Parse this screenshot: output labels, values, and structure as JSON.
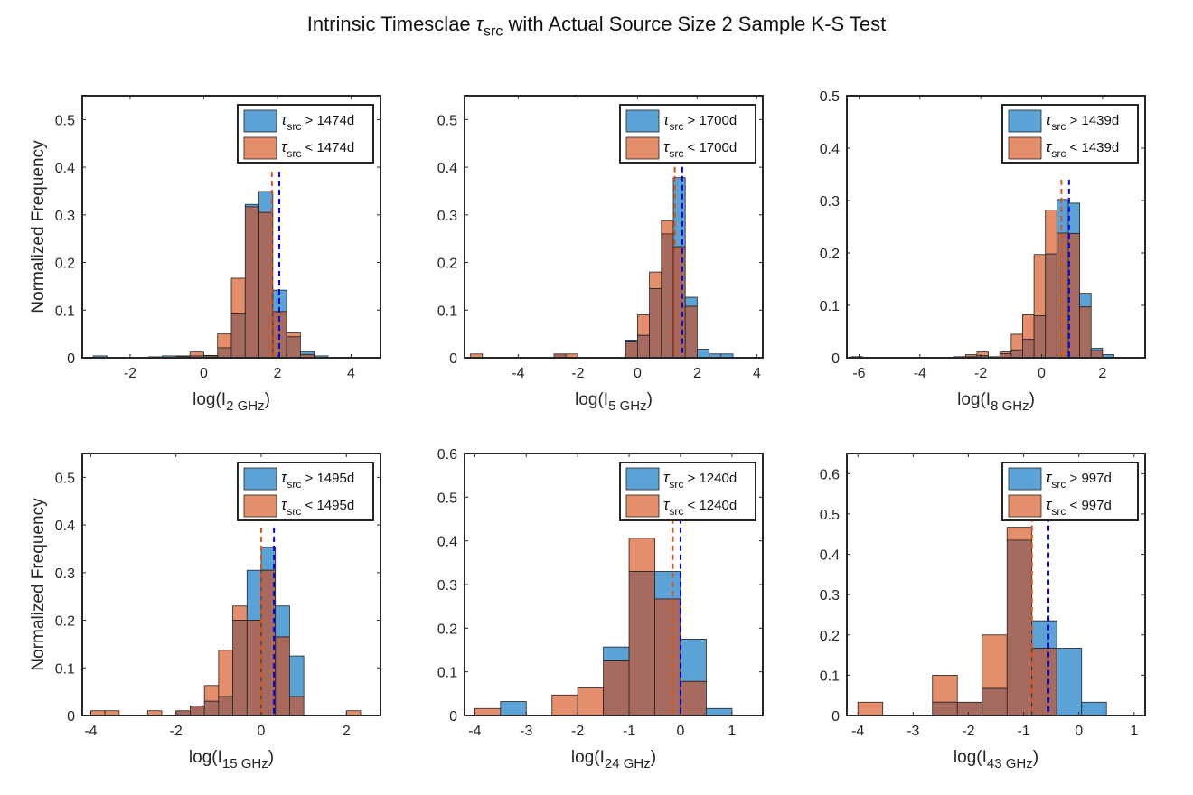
{
  "title": {
    "prefix": "Intrinsic Timesclae ",
    "symbol": "τ",
    "sub": "src",
    "suffix": " with Actual Source Size 2 Sample K-S Test"
  },
  "colors": {
    "above": "#5ba3d6",
    "below": "#e58e6b",
    "overlap": "#a66a5e",
    "median_above": "#0000dd",
    "median_below": "#d95319"
  },
  "ylabel": "Normalized Frequency",
  "chart_data": [
    {
      "type": "bar",
      "name": "2 GHz",
      "xlabel_main": "log(I",
      "xlabel_sub": "2 GHz",
      "xlim": [
        -3.3,
        4.8
      ],
      "ylim": [
        0,
        0.55
      ],
      "xticks": [
        -2,
        0,
        2,
        4
      ],
      "xtick_labels": [
        "-2",
        "0",
        "2",
        "4"
      ],
      "yticks": [
        0,
        0.1,
        0.2,
        0.3,
        0.4,
        0.5
      ],
      "ytick_labels": [
        "0",
        "0.1",
        "0.2",
        "0.3",
        "0.4",
        "0.5"
      ],
      "bin_edges": [
        -3.0,
        -2.625,
        -2.25,
        -1.875,
        -1.5,
        -1.125,
        -0.75,
        -0.375,
        0.0,
        0.375,
        0.75,
        1.125,
        1.5,
        1.875,
        2.25,
        2.625,
        3.0,
        3.375,
        3.75,
        4.125,
        4.5
      ],
      "series": [
        {
          "name": "τsrc > 1474d",
          "legend_prefix": "τ",
          "legend_sub": "src",
          "legend_suffix": " > 1474d",
          "values": [
            0.004,
            0.0,
            0.0,
            0.0,
            0.002,
            0.004,
            0.004,
            0.004,
            0.004,
            0.021,
            0.092,
            0.322,
            0.349,
            0.142,
            0.044,
            0.013,
            0.004,
            0.0,
            0.0,
            0.0
          ]
        },
        {
          "name": "τsrc < 1474d",
          "legend_prefix": "τ",
          "legend_sub": "src",
          "legend_suffix": " < 1474d",
          "values": [
            0.0,
            0.0,
            0.0,
            0.0,
            0.0,
            0.0,
            0.003,
            0.012,
            0.005,
            0.05,
            0.167,
            0.317,
            0.305,
            0.097,
            0.052,
            0.007,
            0.0,
            0.0,
            0.0,
            0.0
          ]
        }
      ],
      "medians": [
        2.05,
        1.85
      ]
    },
    {
      "type": "bar",
      "name": "5 GHz",
      "xlabel_main": "log(I",
      "xlabel_sub": "5 GHz",
      "xlim": [
        -5.8,
        4.2
      ],
      "ylim": [
        0,
        0.55
      ],
      "xticks": [
        -4,
        -2,
        0,
        2,
        4
      ],
      "xtick_labels": [
        "-4",
        "-2",
        "0",
        "2",
        "4"
      ],
      "yticks": [
        0,
        0.1,
        0.2,
        0.3,
        0.4,
        0.5
      ],
      "ytick_labels": [
        "0",
        "0.1",
        "0.2",
        "0.3",
        "0.4",
        "0.5"
      ],
      "bin_edges": [
        -5.6,
        -5.2,
        -4.8,
        -4.4,
        -4.0,
        -3.6,
        -3.2,
        -2.8,
        -2.4,
        -2.0,
        -1.6,
        -1.2,
        -0.8,
        -0.4,
        0.0,
        0.4,
        0.8,
        1.2,
        1.6,
        2.0,
        2.4,
        2.8,
        3.2,
        3.6,
        4.0
      ],
      "series": [
        {
          "name": "τsrc > 1700d",
          "legend_prefix": "τ",
          "legend_sub": "src",
          "legend_suffix": " > 1700d",
          "values": [
            0.0,
            0.0,
            0.0,
            0.0,
            0.0,
            0.0,
            0.0,
            0.008,
            0.0,
            0.0,
            0.0,
            0.0,
            0.0,
            0.037,
            0.047,
            0.145,
            0.26,
            0.378,
            0.127,
            0.018,
            0.008,
            0.008,
            0.0,
            0.0
          ]
        },
        {
          "name": "τsrc < 1700d",
          "legend_prefix": "τ",
          "legend_sub": "src",
          "legend_suffix": " < 1700d",
          "values": [
            0.008,
            0.0,
            0.0,
            0.0,
            0.0,
            0.0,
            0.0,
            0.008,
            0.008,
            0.0,
            0.0,
            0.0,
            0.0,
            0.033,
            0.09,
            0.18,
            0.288,
            0.233,
            0.108,
            0.0,
            0.0,
            0.0,
            0.0,
            0.0
          ]
        }
      ],
      "medians": [
        1.5,
        1.25
      ]
    },
    {
      "type": "bar",
      "name": "8 GHz",
      "xlabel_main": "log(I",
      "xlabel_sub": "8 GHz",
      "xlim": [
        -6.4,
        3.4
      ],
      "ylim": [
        0,
        0.5
      ],
      "xticks": [
        -6,
        -4,
        -2,
        0,
        2
      ],
      "xtick_labels": [
        "-6",
        "-4",
        "-2",
        "0",
        "2"
      ],
      "yticks": [
        0,
        0.1,
        0.2,
        0.3,
        0.4,
        0.5
      ],
      "ytick_labels": [
        "0",
        "0.1",
        "0.2",
        "0.3",
        "0.4",
        "0.5"
      ],
      "bin_edges": [
        -6.25,
        -5.875,
        -5.5,
        -5.125,
        -4.75,
        -4.375,
        -4.0,
        -3.625,
        -3.25,
        -2.875,
        -2.5,
        -2.125,
        -1.75,
        -1.375,
        -1.0,
        -0.625,
        -0.25,
        0.125,
        0.5,
        0.875,
        1.25,
        1.625,
        2.0,
        2.375,
        2.75,
        3.125
      ],
      "series": [
        {
          "name": "τsrc > 1439d",
          "legend_prefix": "τ",
          "legend_sub": "src",
          "legend_suffix": " > 1439d",
          "values": [
            0.002,
            0.0,
            0.0,
            0.0,
            0.0,
            0.0,
            0.0,
            0.0,
            0.0,
            0.002,
            0.002,
            0.004,
            0.002,
            0.008,
            0.015,
            0.035,
            0.08,
            0.198,
            0.302,
            0.295,
            0.123,
            0.018,
            0.006,
            0.0,
            0.0
          ]
        },
        {
          "name": "τsrc < 1439d",
          "legend_prefix": "τ",
          "legend_sub": "src",
          "legend_suffix": " < 1439d",
          "values": [
            0.0,
            0.0,
            0.0,
            0.0,
            0.0,
            0.0,
            0.0,
            0.0,
            0.0,
            0.0,
            0.006,
            0.011,
            0.0,
            0.011,
            0.045,
            0.082,
            0.197,
            0.282,
            0.238,
            0.237,
            0.097,
            0.014,
            0.0,
            0.0,
            0.0
          ]
        }
      ],
      "medians": [
        0.9,
        0.65
      ]
    },
    {
      "type": "bar",
      "name": "15 GHz",
      "xlabel_main": "log(I",
      "xlabel_sub": "15 GHz",
      "xlim": [
        -4.2,
        2.8
      ],
      "ylim": [
        0,
        0.55
      ],
      "xticks": [
        -4,
        -2,
        0,
        2
      ],
      "xtick_labels": [
        "-4",
        "-2",
        "0",
        "2"
      ],
      "yticks": [
        0,
        0.1,
        0.2,
        0.3,
        0.4,
        0.5
      ],
      "ytick_labels": [
        "0",
        "0.1",
        "0.2",
        "0.3",
        "0.4",
        "0.5"
      ],
      "bin_edges": [
        -4.0,
        -3.667,
        -3.333,
        -3.0,
        -2.667,
        -2.333,
        -2.0,
        -1.667,
        -1.333,
        -1.0,
        -0.667,
        -0.333,
        0.0,
        0.333,
        0.667,
        1.0,
        1.333,
        1.667,
        2.0,
        2.333,
        2.667
      ],
      "series": [
        {
          "name": "τsrc > 1495d",
          "legend_prefix": "τ",
          "legend_sub": "src",
          "legend_suffix": " > 1495d",
          "values": [
            0.0,
            0.0,
            0.0,
            0.0,
            0.0,
            0.0,
            0.01,
            0.02,
            0.03,
            0.04,
            0.2,
            0.305,
            0.353,
            0.23,
            0.125,
            0.0,
            0.0,
            0.0,
            0.0,
            0.0
          ]
        },
        {
          "name": "τsrc < 1495d",
          "legend_prefix": "τ",
          "legend_sub": "src",
          "legend_suffix": " < 1495d",
          "values": [
            0.01,
            0.01,
            0.0,
            0.0,
            0.01,
            0.0,
            0.01,
            0.02,
            0.063,
            0.137,
            0.23,
            0.2,
            0.305,
            0.165,
            0.04,
            0.0,
            0.0,
            0.0,
            0.01,
            0.0
          ]
        }
      ],
      "medians": [
        0.3,
        0.0
      ]
    },
    {
      "type": "bar",
      "name": "24 GHz",
      "xlabel_main": "log(I",
      "xlabel_sub": "24 GHz",
      "xlim": [
        -4.2,
        1.6
      ],
      "ylim": [
        0,
        0.6
      ],
      "xticks": [
        -4,
        -3,
        -2,
        -1,
        0,
        1
      ],
      "xtick_labels": [
        "-4",
        "-3",
        "-2",
        "-1",
        "0",
        "1"
      ],
      "yticks": [
        0,
        0.1,
        0.2,
        0.3,
        0.4,
        0.5,
        0.6
      ],
      "ytick_labels": [
        "0",
        "0.1",
        "0.2",
        "0.3",
        "0.4",
        "0.5",
        "0.6"
      ],
      "bin_edges": [
        -4.0,
        -3.5,
        -3.0,
        -2.5,
        -2.0,
        -1.5,
        -1.0,
        -0.5,
        0.0,
        0.5,
        1.0,
        1.5
      ],
      "series": [
        {
          "name": "τsrc > 1240d",
          "legend_prefix": "τ",
          "legend_sub": "src",
          "legend_suffix": " > 1240d",
          "values": [
            0.0,
            0.032,
            0.0,
            0.0,
            0.0,
            0.157,
            0.33,
            0.33,
            0.175,
            0.016,
            0.0
          ]
        },
        {
          "name": "τsrc < 1240d",
          "legend_prefix": "τ",
          "legend_sub": "src",
          "legend_suffix": " < 1240d",
          "values": [
            0.016,
            0.0,
            0.0,
            0.047,
            0.063,
            0.125,
            0.406,
            0.267,
            0.078,
            0.0,
            0.0
          ]
        }
      ],
      "medians": [
        0.0,
        -0.15
      ]
    },
    {
      "type": "bar",
      "name": "43 GHz",
      "xlabel_main": "log(I",
      "xlabel_sub": "43 GHz",
      "xlim": [
        -4.2,
        1.2
      ],
      "ylim": [
        0,
        0.65
      ],
      "xticks": [
        -4,
        -3,
        -2,
        -1,
        0,
        1
      ],
      "xtick_labels": [
        "-4",
        "-3",
        "-2",
        "-1",
        "0",
        "1"
      ],
      "yticks": [
        0,
        0.1,
        0.2,
        0.3,
        0.4,
        0.5,
        0.6
      ],
      "ytick_labels": [
        "0",
        "0.1",
        "0.2",
        "0.3",
        "0.4",
        "0.5",
        "0.6"
      ],
      "bin_edges": [
        -4.0,
        -3.55,
        -3.1,
        -2.65,
        -2.2,
        -1.75,
        -1.3,
        -0.85,
        -0.4,
        0.05,
        0.5,
        0.95
      ],
      "series": [
        {
          "name": "τsrc > 997d",
          "legend_prefix": "τ",
          "legend_sub": "src",
          "legend_suffix": " > 997d",
          "values": [
            0.0,
            0.0,
            0.0,
            0.033,
            0.033,
            0.067,
            0.435,
            0.235,
            0.167,
            0.033,
            0.0
          ]
        },
        {
          "name": "τsrc < 997d",
          "legend_prefix": "τ",
          "legend_sub": "src",
          "legend_suffix": " < 997d",
          "values": [
            0.033,
            0.0,
            0.0,
            0.1,
            0.033,
            0.2,
            0.467,
            0.167,
            0.0,
            0.0,
            0.0
          ]
        }
      ],
      "medians": [
        -0.55,
        -0.85
      ]
    }
  ]
}
